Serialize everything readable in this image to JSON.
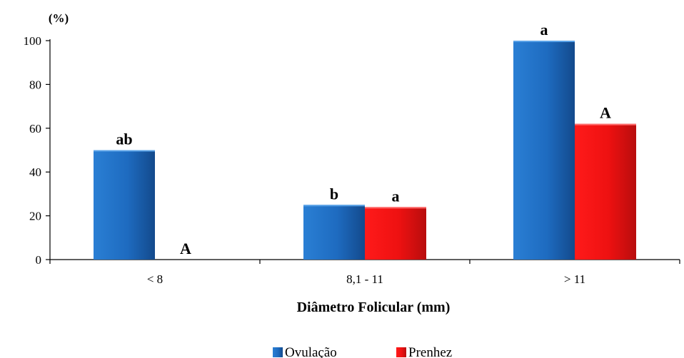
{
  "chart_data": {
    "type": "bar",
    "categories": [
      "< 8",
      "8,1 - 11",
      "> 11"
    ],
    "series": [
      {
        "name": "Ovulação",
        "values": [
          50,
          25,
          100
        ],
        "labels": [
          "ab",
          "b",
          "a"
        ],
        "color": "#1f6fc1"
      },
      {
        "name": "Prenhez",
        "values": [
          0,
          24,
          62
        ],
        "labels": [
          "A",
          "a",
          "A"
        ],
        "color": "#ee1111"
      }
    ],
    "title": "",
    "xlabel": "Diâmetro Folicular (mm)",
    "ylabel": "(%)",
    "ylim": [
      0,
      100
    ],
    "yticks": [
      0,
      20,
      40,
      60,
      80,
      100
    ],
    "grid": false,
    "legend_position": "bottom"
  }
}
